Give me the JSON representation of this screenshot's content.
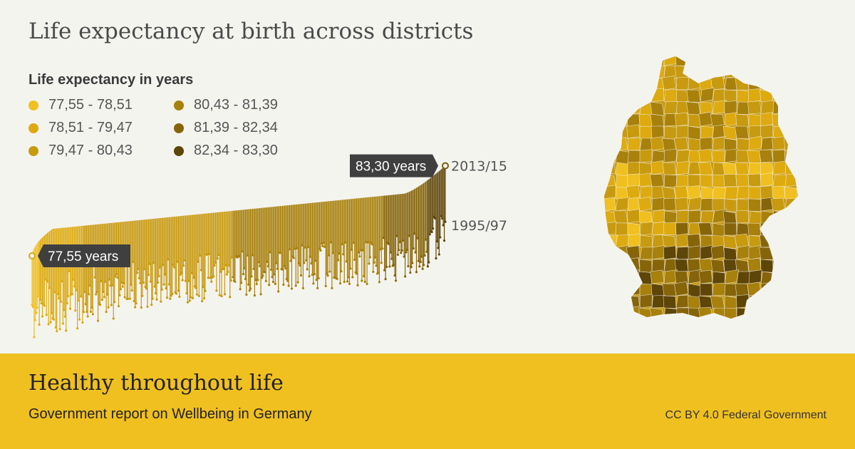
{
  "title": "Life expectancy at birth across districts",
  "legend": {
    "title": "Life expectancy in years",
    "items": [
      {
        "label": "77,55 - 78,51",
        "color": "#f0c020"
      },
      {
        "label": "78,51 - 79,47",
        "color": "#ddaa10"
      },
      {
        "label": "79,47 - 80,43",
        "color": "#c89a10"
      },
      {
        "label": "80,43 - 81,39",
        "color": "#a8800c"
      },
      {
        "label": "81,39 - 82,34",
        "color": "#86640a"
      },
      {
        "label": "82,34 - 83,30",
        "color": "#5e4508"
      }
    ]
  },
  "chart_data": {
    "type": "scatter",
    "title": "Life expectancy at birth across districts",
    "xlabel": "",
    "ylabel": "Life expectancy in years",
    "period_labels": [
      "2013/15",
      "1995/97"
    ],
    "annotations": {
      "min_label": "77,55 years",
      "max_label": "83,30 years"
    },
    "series": [
      {
        "name": "2013/15",
        "min": 77.55,
        "max": 83.3
      },
      {
        "name": "1995/97"
      }
    ],
    "ylim": [
      72.5,
      83.6
    ],
    "districts_count": 402
  },
  "footer": {
    "title": "Healthy throughout life",
    "subtitle": "Government report on Wellbeing in Germany",
    "license": "CC BY 4.0 Federal Government"
  }
}
